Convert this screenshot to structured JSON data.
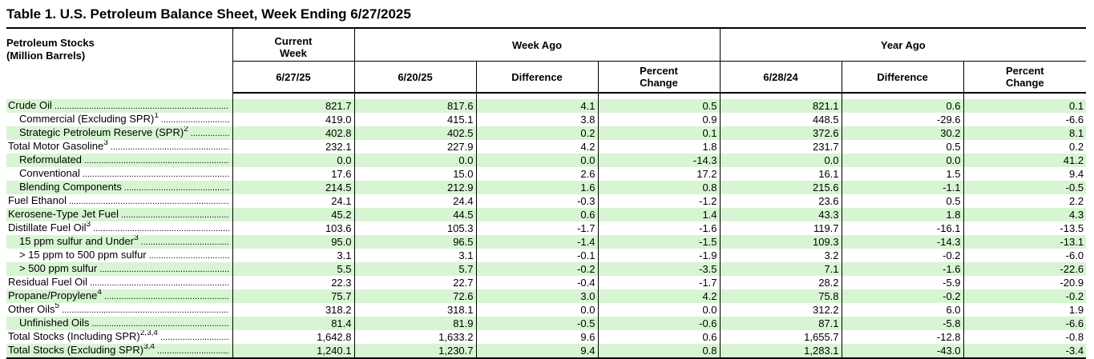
{
  "title": "Table 1.   U.S. Petroleum Balance Sheet, Week Ending 6/27/2025",
  "header": {
    "stocks_label_line1": "Petroleum Stocks",
    "stocks_label_line2": "(Million Barrels)",
    "current_week_line1": "Current",
    "current_week_line2": "Week",
    "current_week_date": "6/27/25",
    "week_ago": "Week Ago",
    "year_ago": "Year Ago",
    "week_ago_date": "6/20/25",
    "year_ago_date": "6/28/24",
    "difference": "Difference",
    "percent_line1": "Percent",
    "percent_line2": "Change"
  },
  "colors": {
    "row_highlight": "#d7f5d2",
    "rule": "#000000"
  },
  "rows": [
    {
      "label": "Crude Oil",
      "sup": "",
      "indent": false,
      "green": true,
      "values": [
        "821.7",
        "817.6",
        "4.1",
        "0.5",
        "821.1",
        "0.6",
        "0.1"
      ]
    },
    {
      "label": "Commercial (Excluding SPR)",
      "sup": "1",
      "indent": true,
      "green": false,
      "values": [
        "419.0",
        "415.1",
        "3.8",
        "0.9",
        "448.5",
        "-29.6",
        "-6.6"
      ]
    },
    {
      "label": "Strategic Petroleum Reserve (SPR)",
      "sup": "2",
      "indent": true,
      "green": true,
      "values": [
        "402.8",
        "402.5",
        "0.2",
        "0.1",
        "372.6",
        "30.2",
        "8.1"
      ]
    },
    {
      "label": "Total Motor Gasoline",
      "sup": "3",
      "indent": false,
      "green": false,
      "values": [
        "232.1",
        "227.9",
        "4.2",
        "1.8",
        "231.7",
        "0.5",
        "0.2"
      ]
    },
    {
      "label": "Reformulated",
      "sup": "",
      "indent": true,
      "green": true,
      "values": [
        "0.0",
        "0.0",
        "0.0",
        "-14.3",
        "0.0",
        "0.0",
        "41.2"
      ]
    },
    {
      "label": "Conventional",
      "sup": "",
      "indent": true,
      "green": false,
      "values": [
        "17.6",
        "15.0",
        "2.6",
        "17.2",
        "16.1",
        "1.5",
        "9.4"
      ]
    },
    {
      "label": "Blending Components",
      "sup": "",
      "indent": true,
      "green": true,
      "values": [
        "214.5",
        "212.9",
        "1.6",
        "0.8",
        "215.6",
        "-1.1",
        "-0.5"
      ]
    },
    {
      "label": "Fuel Ethanol",
      "sup": "",
      "indent": false,
      "green": false,
      "values": [
        "24.1",
        "24.4",
        "-0.3",
        "-1.2",
        "23.6",
        "0.5",
        "2.2"
      ]
    },
    {
      "label": "Kerosene-Type Jet Fuel",
      "sup": "",
      "indent": false,
      "green": true,
      "values": [
        "45.2",
        "44.5",
        "0.6",
        "1.4",
        "43.3",
        "1.8",
        "4.3"
      ]
    },
    {
      "label": "Distillate Fuel Oil",
      "sup": "3",
      "indent": false,
      "green": false,
      "values": [
        "103.6",
        "105.3",
        "-1.7",
        "-1.6",
        "119.7",
        "-16.1",
        "-13.5"
      ]
    },
    {
      "label": "15 ppm sulfur and Under",
      "sup": "3",
      "indent": true,
      "green": true,
      "values": [
        "95.0",
        "96.5",
        "-1.4",
        "-1.5",
        "109.3",
        "-14.3",
        "-13.1"
      ]
    },
    {
      "label": "> 15 ppm to 500 ppm sulfur",
      "sup": "",
      "indent": true,
      "green": false,
      "values": [
        "3.1",
        "3.1",
        "-0.1",
        "-1.9",
        "3.2",
        "-0.2",
        "-6.0"
      ]
    },
    {
      "label": "> 500 ppm sulfur",
      "sup": "",
      "indent": true,
      "green": true,
      "values": [
        "5.5",
        "5.7",
        "-0.2",
        "-3.5",
        "7.1",
        "-1.6",
        "-22.6"
      ]
    },
    {
      "label": "Residual Fuel Oil",
      "sup": "",
      "indent": false,
      "green": false,
      "values": [
        "22.3",
        "22.7",
        "-0.4",
        "-1.7",
        "28.2",
        "-5.9",
        "-20.9"
      ]
    },
    {
      "label": "Propane/Propylene",
      "sup": "4",
      "indent": false,
      "green": true,
      "values": [
        "75.7",
        "72.6",
        "3.0",
        "4.2",
        "75.8",
        "-0.2",
        "-0.2"
      ]
    },
    {
      "label": "Other Oils",
      "sup": "5",
      "indent": false,
      "green": false,
      "values": [
        "318.2",
        "318.1",
        "0.0",
        "0.0",
        "312.2",
        "6.0",
        "1.9"
      ]
    },
    {
      "label": "Unfinished Oils",
      "sup": "",
      "indent": true,
      "green": true,
      "values": [
        "81.4",
        "81.9",
        "-0.5",
        "-0.6",
        "87.1",
        "-5.8",
        "-6.6"
      ]
    },
    {
      "label": "Total Stocks (Including SPR)",
      "sup": "2,3,4",
      "indent": false,
      "green": false,
      "values": [
        "1,642.8",
        "1,633.2",
        "9.6",
        "0.6",
        "1,655.7",
        "-12.8",
        "-0.8"
      ]
    },
    {
      "label": "Total Stocks (Excluding SPR)",
      "sup": "3,4",
      "indent": false,
      "green": true,
      "values": [
        "1,240.1",
        "1,230.7",
        "9.4",
        "0.8",
        "1,283.1",
        "-43.0",
        "-3.4"
      ]
    }
  ]
}
